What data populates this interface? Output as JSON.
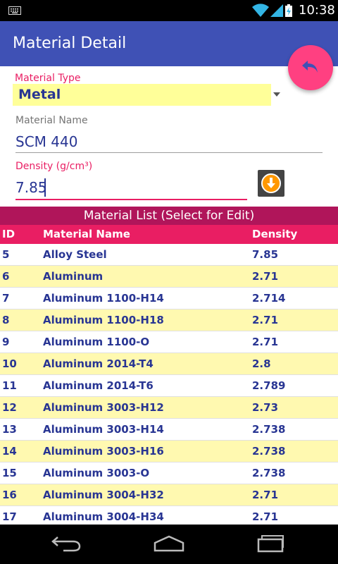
{
  "status_bar": {
    "time": "10:38",
    "icons": [
      "keyboard-icon",
      "wifi-icon",
      "signal-icon",
      "battery-charging-icon"
    ]
  },
  "app_bar": {
    "title": "Material Detail"
  },
  "fab": {
    "icon": "undo-arrow-icon",
    "color": "#ff4081"
  },
  "form": {
    "material_type_label": "Material Type",
    "material_type_value": "Metal",
    "material_name_label": "Material Name",
    "material_name_value": "SCM 440",
    "density_label": "Density (g/cm³)",
    "density_value": "7.85",
    "download_icon": "arrow-down-circle-icon"
  },
  "list": {
    "title": "Material List (Select for Edit)",
    "columns": {
      "id": "ID",
      "name": "Material Name",
      "density": "Density"
    },
    "rows": [
      {
        "id": "5",
        "name": "Alloy Steel",
        "density": "7.85"
      },
      {
        "id": "6",
        "name": "Aluminum",
        "density": "2.71"
      },
      {
        "id": "7",
        "name": "Aluminum 1100-H14",
        "density": "2.714"
      },
      {
        "id": "8",
        "name": "Aluminum 1100-H18",
        "density": "2.71"
      },
      {
        "id": "9",
        "name": "Aluminum 1100-O",
        "density": "2.71"
      },
      {
        "id": "10",
        "name": "Aluminum 2014-T4",
        "density": "2.8"
      },
      {
        "id": "11",
        "name": "Aluminum 2014-T6",
        "density": "2.789"
      },
      {
        "id": "12",
        "name": "Aluminum 3003-H12",
        "density": "2.73"
      },
      {
        "id": "13",
        "name": "Aluminum 3003-H14",
        "density": "2.738"
      },
      {
        "id": "14",
        "name": "Aluminum 3003-H16",
        "density": "2.738"
      },
      {
        "id": "15",
        "name": "Aluminum 3003-O",
        "density": "2.738"
      },
      {
        "id": "16",
        "name": "Aluminum 3004-H32",
        "density": "2.71"
      },
      {
        "id": "17",
        "name": "Aluminum 3004-H34",
        "density": "2.71"
      }
    ]
  },
  "nav_bar": {
    "icons": [
      "back-icon",
      "home-icon",
      "recents-icon"
    ]
  },
  "colors": {
    "primary": "#3f51b5",
    "accent": "#e91e63",
    "list_title_bg": "#b0155a",
    "row_highlight": "#fff9b0",
    "text_dark_blue": "#283593"
  }
}
